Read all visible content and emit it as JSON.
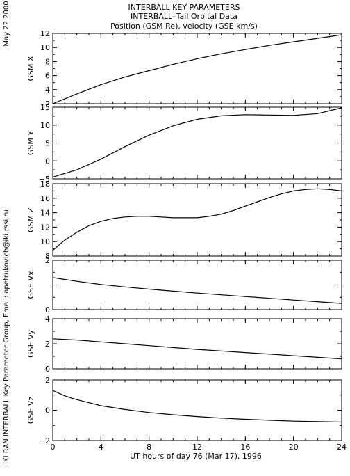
{
  "titles": {
    "line1": "INTERBALL KEY PARAMETERS",
    "line2": "INTERBALL–Tail Orbital Data",
    "line3": "Position (GSM Re), velocity (GSE km/s)"
  },
  "side_labels": {
    "date": "May 22 2000",
    "credit": "IKI RAN INTERBALL Key Parameter Group, Email: apetrukovich@iki.rssi.ru"
  },
  "xlabel": "UT hours of day  76 (Mar 17), 1996",
  "colors": {
    "line": "#000000",
    "background": "#ffffff"
  },
  "chart_data": [
    {
      "type": "line",
      "ylabel": "GSM X",
      "xlim": [
        0,
        24
      ],
      "ylim": [
        2,
        12
      ],
      "yticks": [
        2,
        4,
        6,
        8,
        10,
        12
      ],
      "yticklabels": [
        "2",
        "4",
        "6",
        "8",
        "10",
        "12"
      ],
      "xticks": [
        0,
        4,
        8,
        12,
        16,
        20,
        24
      ],
      "xticklabels": [],
      "series": [
        {
          "x": [
            0,
            2,
            4,
            6,
            8,
            10,
            12,
            14,
            16,
            18,
            20,
            22,
            24
          ],
          "y": [
            2.0,
            3.4,
            4.7,
            5.8,
            6.7,
            7.6,
            8.4,
            9.1,
            9.7,
            10.3,
            10.8,
            11.3,
            11.8
          ]
        }
      ]
    },
    {
      "type": "line",
      "ylabel": "GSM Y",
      "xlim": [
        0,
        24
      ],
      "ylim": [
        -5,
        15
      ],
      "yticks": [
        -5,
        0,
        5,
        10,
        15
      ],
      "yticklabels": [
        "−5",
        "0",
        "5",
        "10",
        "15"
      ],
      "xticks": [
        0,
        4,
        8,
        12,
        16,
        20,
        24
      ],
      "xticklabels": [],
      "series": [
        {
          "x": [
            0,
            2,
            4,
            6,
            8,
            10,
            12,
            14,
            16,
            18,
            20,
            22,
            24
          ],
          "y": [
            -4.5,
            -2.5,
            0.5,
            4.0,
            7.2,
            9.8,
            11.6,
            12.6,
            12.9,
            12.8,
            12.7,
            13.2,
            14.8
          ]
        }
      ]
    },
    {
      "type": "line",
      "ylabel": "GSM Z",
      "xlim": [
        0,
        24
      ],
      "ylim": [
        8,
        18
      ],
      "yticks": [
        8,
        10,
        12,
        14,
        16,
        18
      ],
      "yticklabels": [
        "8",
        "10",
        "12",
        "14",
        "16",
        "18"
      ],
      "xticks": [
        0,
        4,
        8,
        12,
        16,
        20,
        24
      ],
      "xticklabels": [],
      "series": [
        {
          "x": [
            0,
            1,
            2,
            3,
            4,
            5,
            6,
            7,
            8,
            9,
            10,
            11,
            12,
            13,
            14,
            15,
            16,
            17,
            18,
            19,
            20,
            21,
            22,
            23,
            24
          ],
          "y": [
            8.8,
            10.2,
            11.3,
            12.2,
            12.8,
            13.2,
            13.4,
            13.5,
            13.5,
            13.4,
            13.3,
            13.3,
            13.3,
            13.5,
            13.8,
            14.3,
            14.9,
            15.5,
            16.1,
            16.6,
            17.0,
            17.2,
            17.3,
            17.2,
            17.0
          ]
        }
      ]
    },
    {
      "type": "line",
      "ylabel": "GSE Vx",
      "xlim": [
        0,
        24
      ],
      "ylim": [
        0,
        2
      ],
      "yticks": [
        0,
        1,
        2
      ],
      "yticklabels": [
        "0",
        "",
        "2"
      ],
      "xticks": [
        0,
        4,
        8,
        12,
        16,
        20,
        24
      ],
      "xticklabels": [],
      "series": [
        {
          "x": [
            0,
            2,
            4,
            6,
            8,
            10,
            12,
            14,
            16,
            18,
            20,
            22,
            24
          ],
          "y": [
            1.3,
            1.15,
            1.02,
            0.92,
            0.83,
            0.75,
            0.67,
            0.6,
            0.53,
            0.46,
            0.39,
            0.32,
            0.25
          ]
        }
      ]
    },
    {
      "type": "line",
      "ylabel": "GSE Vy",
      "xlim": [
        0,
        24
      ],
      "ylim": [
        0,
        4
      ],
      "yticks": [
        0,
        2,
        4
      ],
      "yticklabels": [
        "0",
        "2",
        "4"
      ],
      "xticks": [
        0,
        4,
        8,
        12,
        16,
        20,
        24
      ],
      "xticklabels": [],
      "series": [
        {
          "x": [
            0,
            2,
            4,
            6,
            8,
            10,
            12,
            14,
            16,
            18,
            20,
            22,
            24
          ],
          "y": [
            2.4,
            2.3,
            2.15,
            2.0,
            1.85,
            1.7,
            1.55,
            1.43,
            1.3,
            1.18,
            1.05,
            0.92,
            0.8
          ]
        }
      ]
    },
    {
      "type": "line",
      "ylabel": "GSE Vz",
      "xlim": [
        0,
        24
      ],
      "ylim": [
        -2,
        2
      ],
      "yticks": [
        -2,
        0,
        2
      ],
      "yticklabels": [
        "−2",
        "0",
        "2"
      ],
      "xticks": [
        0,
        4,
        8,
        12,
        16,
        20,
        24
      ],
      "xticklabels": [
        "0",
        "4",
        "8",
        "12",
        "16",
        "20",
        "24"
      ],
      "series": [
        {
          "x": [
            0,
            1,
            2,
            3,
            4,
            6,
            8,
            10,
            12,
            14,
            16,
            18,
            20,
            22,
            24
          ],
          "y": [
            1.3,
            0.95,
            0.7,
            0.5,
            0.3,
            0.05,
            -0.15,
            -0.3,
            -0.42,
            -0.52,
            -0.6,
            -0.66,
            -0.72,
            -0.75,
            -0.78
          ]
        }
      ]
    }
  ]
}
